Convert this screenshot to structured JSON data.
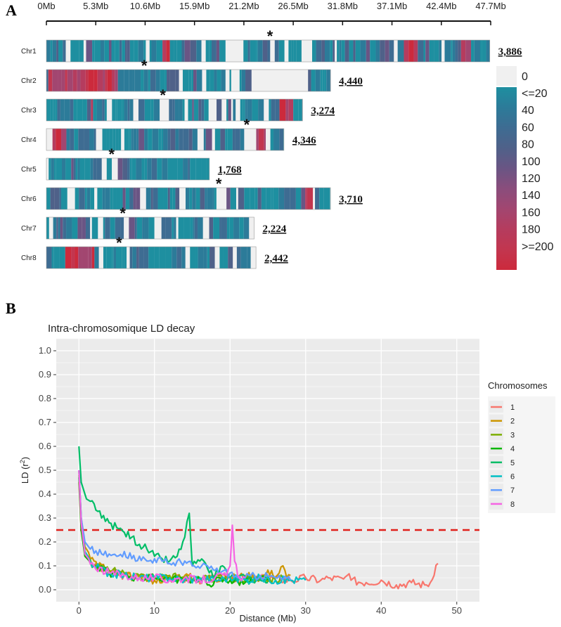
{
  "panels": {
    "a_label": "A",
    "b_label": "B"
  },
  "chart_data": [
    {
      "type": "heatmap",
      "description_label": "Chromosome SNP density heatmap",
      "x_tick_labels": [
        "0Mb",
        "5.3Mb",
        "10.6Mb",
        "15.9Mb",
        "21.2Mb",
        "26.5Mb",
        "31.8Mb",
        "37.1Mb",
        "42.4Mb",
        "47.7Mb"
      ],
      "x_range_mb": [
        0,
        47.7
      ],
      "chromosomes": [
        {
          "name": "Chr1",
          "length_mb": 47.6,
          "count": "3,886",
          "star_mb": 24.0,
          "gap_mb": [
            19.0,
            21.0
          ],
          "red_mb": [
            [
              12.0,
              13.0
            ],
            [
              38.2,
              39.5
            ],
            [
              44.5,
              45.5
            ]
          ]
        },
        {
          "name": "Chr2",
          "length_mb": 30.5,
          "count": "4,440",
          "star_mb": 10.5,
          "gap_mb": [
            22.0,
            28.0
          ],
          "red_mb": [
            [
              0.2,
              7.5
            ]
          ]
        },
        {
          "name": "Chr3",
          "length_mb": 27.5,
          "count": "3,274",
          "star_mb": 12.5,
          "gap_mb": [
            12.0,
            13.0
          ],
          "red_mb": [
            [
              4.5,
              5.0
            ],
            [
              25.0,
              26.0
            ]
          ]
        },
        {
          "name": "Chr4",
          "length_mb": 25.5,
          "count": "4,346",
          "star_mb": 21.5,
          "gap_mb": [
            21.0,
            22.0
          ],
          "red_mb": [
            [
              0.1,
              2.0
            ],
            [
              22.0,
              23.5
            ]
          ]
        },
        {
          "name": "Chr5",
          "length_mb": 17.5,
          "count": "1,768",
          "star_mb": 7.0,
          "gap_mb": [
            6.5,
            7.2
          ],
          "red_mb": []
        },
        {
          "name": "Chr6",
          "length_mb": 30.5,
          "count": "3,710",
          "star_mb": 18.5,
          "gap_mb": [
            18.3,
            18.8
          ],
          "red_mb": [
            [
              27.5,
              28.5
            ]
          ]
        },
        {
          "name": "Chr7",
          "length_mb": 22.3,
          "count": "2,224",
          "star_mb": 8.2,
          "gap_mb": [
            8.0,
            8.6
          ],
          "red_mb": []
        },
        {
          "name": "Chr8",
          "length_mb": 22.5,
          "count": "2,442",
          "star_mb": 7.8,
          "gap_mb": [
            7.6,
            8.1
          ],
          "red_mb": [
            [
              2.0,
              5.0
            ]
          ]
        }
      ],
      "legend": {
        "labels": [
          "0",
          "<=20",
          "40",
          "60",
          "80",
          "100",
          "120",
          "140",
          "160",
          "180",
          ">=200"
        ],
        "colors": [
          "#f0f0f0",
          "#1e8fa0",
          "#2c7b99",
          "#3e6c92",
          "#4f6189",
          "#6a5584",
          "#8a4d7c",
          "#a24670",
          "#b53c5e",
          "#c2364f",
          "#cc2a3c"
        ]
      }
    },
    {
      "type": "line",
      "title": "Intra-chromosomique LD decay",
      "xlabel": "Distance (Mb)",
      "ylabel_main": "LD (r",
      "ylabel_sup": "2",
      "ylabel_end": ")",
      "xlim": [
        -3,
        53
      ],
      "ylim": [
        -0.05,
        1.05
      ],
      "x_ticks": [
        0,
        10,
        20,
        30,
        40,
        50
      ],
      "y_ticks": [
        0.0,
        0.1,
        0.2,
        0.3,
        0.4,
        0.5,
        0.6,
        0.7,
        0.8,
        0.9,
        1.0
      ],
      "y_tick_labels": [
        "0.0",
        "0.1",
        "0.2",
        "0.3",
        "0.4",
        "0.5",
        "0.6",
        "0.7",
        "0.8",
        "0.9",
        "1.0"
      ],
      "threshold": 0.25,
      "threshold_color": "#e0201b",
      "legend_title": "Chromosomes",
      "series": [
        {
          "name": "1",
          "color": "#f8766d",
          "points": [
            [
              0,
              0.45
            ],
            [
              0.3,
              0.25
            ],
            [
              0.8,
              0.15
            ],
            [
              2,
              0.1
            ],
            [
              4,
              0.07
            ],
            [
              6,
              0.06
            ],
            [
              8,
              0.05
            ],
            [
              10,
              0.05
            ],
            [
              12,
              0.05
            ],
            [
              15,
              0.04
            ],
            [
              18,
              0.045
            ],
            [
              20,
              0.05
            ],
            [
              22,
              0.04
            ],
            [
              25,
              0.05
            ],
            [
              28,
              0.04
            ],
            [
              30,
              0.05
            ],
            [
              32,
              0.04
            ],
            [
              33,
              0.05
            ],
            [
              35,
              0.045
            ],
            [
              35.5,
              0.06
            ],
            [
              36,
              0.04
            ],
            [
              38,
              0.03
            ],
            [
              40,
              0.04
            ],
            [
              42,
              0.02
            ],
            [
              44,
              0.03
            ],
            [
              46,
              0.02
            ],
            [
              46.5,
              0.03
            ],
            [
              47,
              0.06
            ],
            [
              47.5,
              0.11
            ]
          ]
        },
        {
          "name": "2",
          "color": "#cd9600",
          "points": [
            [
              0,
              0.5
            ],
            [
              0.3,
              0.3
            ],
            [
              0.8,
              0.18
            ],
            [
              2,
              0.12
            ],
            [
              4,
              0.08
            ],
            [
              6,
              0.06
            ],
            [
              8,
              0.05
            ],
            [
              10,
              0.04
            ],
            [
              12,
              0.05
            ],
            [
              14,
              0.06
            ],
            [
              16,
              0.04
            ],
            [
              18,
              0.05
            ],
            [
              20,
              0.05
            ],
            [
              22,
              0.06
            ],
            [
              24,
              0.05
            ],
            [
              25.5,
              0.08
            ],
            [
              26,
              0.05
            ],
            [
              27,
              0.1
            ],
            [
              27.5,
              0.05
            ],
            [
              28,
              0.06
            ]
          ]
        },
        {
          "name": "3",
          "color": "#7cae00",
          "points": [
            [
              0,
              0.48
            ],
            [
              0.3,
              0.28
            ],
            [
              0.8,
              0.15
            ],
            [
              2,
              0.1
            ],
            [
              4,
              0.08
            ],
            [
              6,
              0.07
            ],
            [
              8,
              0.06
            ],
            [
              10,
              0.05
            ],
            [
              12,
              0.06
            ],
            [
              14,
              0.05
            ],
            [
              16,
              0.04
            ],
            [
              18,
              0.05
            ],
            [
              20,
              0.05
            ],
            [
              22,
              0.04
            ],
            [
              24,
              0.05
            ],
            [
              26,
              0.04
            ],
            [
              27,
              0.05
            ]
          ]
        },
        {
          "name": "4",
          "color": "#0cb702",
          "points": [
            [
              0,
              0.47
            ],
            [
              0.3,
              0.25
            ],
            [
              0.8,
              0.14
            ],
            [
              2,
              0.1
            ],
            [
              4,
              0.07
            ],
            [
              6,
              0.06
            ],
            [
              8,
              0.05
            ],
            [
              10,
              0.05
            ],
            [
              12,
              0.05
            ],
            [
              14,
              0.04
            ],
            [
              16,
              0.05
            ],
            [
              17,
              0.02
            ],
            [
              18,
              0.04
            ],
            [
              20,
              0.04
            ],
            [
              22,
              0.03
            ],
            [
              24,
              0.05
            ],
            [
              25,
              0.04
            ]
          ]
        },
        {
          "name": "5",
          "color": "#00be67",
          "points": [
            [
              0,
              0.6
            ],
            [
              0.3,
              0.45
            ],
            [
              0.6,
              0.42
            ],
            [
              1,
              0.38
            ],
            [
              2,
              0.36
            ],
            [
              3,
              0.3
            ],
            [
              4,
              0.28
            ],
            [
              5,
              0.26
            ],
            [
              6,
              0.24
            ],
            [
              7,
              0.22
            ],
            [
              8,
              0.19
            ],
            [
              9,
              0.17
            ],
            [
              10,
              0.14
            ],
            [
              11,
              0.13
            ],
            [
              12,
              0.12
            ],
            [
              13,
              0.14
            ],
            [
              14,
              0.22
            ],
            [
              14.6,
              0.32
            ],
            [
              15,
              0.1
            ],
            [
              16,
              0.12
            ],
            [
              17,
              0.09
            ],
            [
              18,
              0.06
            ],
            [
              19,
              0.1
            ],
            [
              20,
              0.05
            ],
            [
              22,
              0.05
            ],
            [
              24,
              0.04
            ],
            [
              25,
              0.03
            ]
          ]
        },
        {
          "name": "6",
          "color": "#00bfc4",
          "points": [
            [
              0,
              0.5
            ],
            [
              0.3,
              0.3
            ],
            [
              0.8,
              0.16
            ],
            [
              2,
              0.1
            ],
            [
              4,
              0.07
            ],
            [
              6,
              0.06
            ],
            [
              8,
              0.05
            ],
            [
              10,
              0.05
            ],
            [
              12,
              0.05
            ],
            [
              14,
              0.04
            ],
            [
              16,
              0.05
            ],
            [
              18,
              0.04
            ],
            [
              20,
              0.05
            ],
            [
              22,
              0.04
            ],
            [
              24,
              0.05
            ],
            [
              26,
              0.04
            ],
            [
              28,
              0.04
            ],
            [
              30,
              0.04
            ]
          ]
        },
        {
          "name": "7",
          "color": "#619cff",
          "points": [
            [
              0,
              0.5
            ],
            [
              0.3,
              0.3
            ],
            [
              0.8,
              0.2
            ],
            [
              1.5,
              0.17
            ],
            [
              3,
              0.15
            ],
            [
              5,
              0.14
            ],
            [
              6,
              0.16
            ],
            [
              7,
              0.13
            ],
            [
              8,
              0.14
            ],
            [
              9,
              0.12
            ],
            [
              10,
              0.13
            ],
            [
              11,
              0.12
            ],
            [
              12,
              0.11
            ],
            [
              14,
              0.12
            ],
            [
              15,
              0.1
            ],
            [
              16,
              0.09
            ],
            [
              17,
              0.1
            ],
            [
              18,
              0.08
            ],
            [
              20,
              0.07
            ],
            [
              21,
              0.05
            ],
            [
              22,
              0.05
            ],
            [
              24,
              0.06
            ],
            [
              26,
              0.05
            ],
            [
              28,
              0.04
            ]
          ]
        },
        {
          "name": "8",
          "color": "#f564e3",
          "points": [
            [
              0,
              0.5
            ],
            [
              0.3,
              0.28
            ],
            [
              0.8,
              0.15
            ],
            [
              2,
              0.1
            ],
            [
              4,
              0.07
            ],
            [
              6,
              0.06
            ],
            [
              8,
              0.05
            ],
            [
              10,
              0.05
            ],
            [
              12,
              0.04
            ],
            [
              14,
              0.05
            ],
            [
              16,
              0.04
            ],
            [
              18,
              0.05
            ],
            [
              19.5,
              0.06
            ],
            [
              20,
              0.1
            ],
            [
              20.3,
              0.27
            ],
            [
              20.6,
              0.12
            ],
            [
              21,
              0.06
            ],
            [
              21.5,
              0.04
            ],
            [
              22,
              0.05
            ]
          ]
        }
      ]
    }
  ]
}
